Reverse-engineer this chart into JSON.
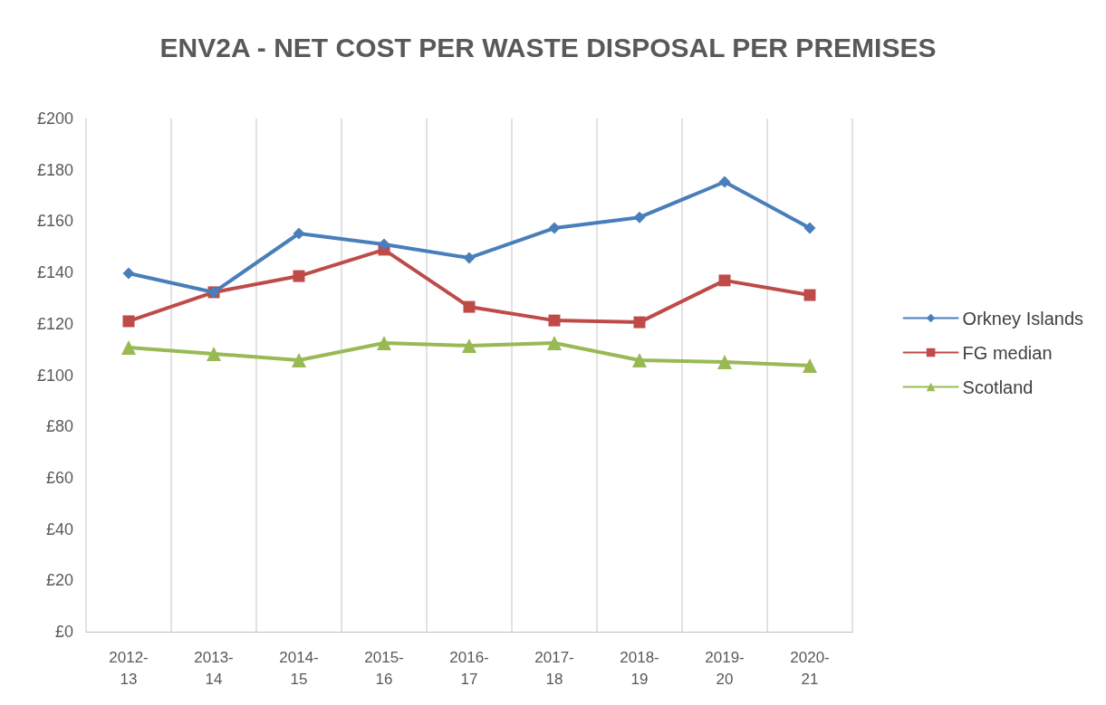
{
  "chart_data": {
    "type": "line",
    "title": "ENV2A - NET COST PER WASTE DISPOSAL PER PREMISES",
    "categories": [
      "2012-13",
      "2013-14",
      "2014-15",
      "2015-16",
      "2016-17",
      "2017-18",
      "2018-19",
      "2019-20",
      "2020-21"
    ],
    "series": [
      {
        "name": "Orkney Islands",
        "color": "#4a7ebb",
        "marker": "diamond",
        "values": [
          139.7,
          132.3,
          155.2,
          151,
          145.7,
          157.3,
          161.5,
          175.3,
          157.3
        ]
      },
      {
        "name": "FG median",
        "color": "#be4b48",
        "marker": "square",
        "values": [
          121,
          132.3,
          138.6,
          148.9,
          126.6,
          121.3,
          120.6,
          136.9,
          131.2
        ]
      },
      {
        "name": "Scotland",
        "color": "#98b954",
        "marker": "triangle",
        "values": [
          110.8,
          108.3,
          105.8,
          112.5,
          111.5,
          112.5,
          105.8,
          105.1,
          103.7
        ]
      }
    ],
    "ylim": [
      0,
      200
    ],
    "yticks": [
      {
        "value": 0,
        "label": "£0"
      },
      {
        "value": 20,
        "label": "£20"
      },
      {
        "value": 40,
        "label": "£40"
      },
      {
        "value": 60,
        "label": "£60"
      },
      {
        "value": 80,
        "label": "£80"
      },
      {
        "value": 100,
        "label": "£100"
      },
      {
        "value": 120,
        "label": "£120"
      },
      {
        "value": 140,
        "label": "£140"
      },
      {
        "value": 160,
        "label": "£160"
      },
      {
        "value": 180,
        "label": "£180"
      },
      {
        "value": 200,
        "label": "£200"
      }
    ],
    "grid": "x",
    "legend": "right",
    "line_style": "solid"
  }
}
